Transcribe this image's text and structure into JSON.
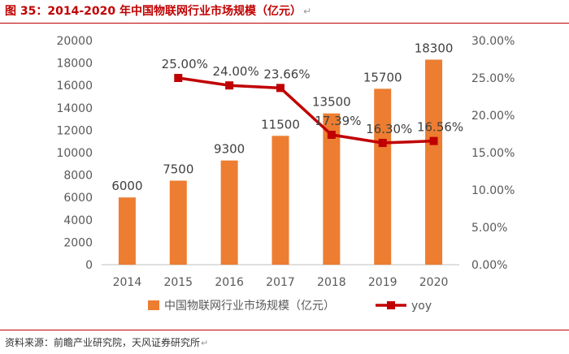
{
  "title": "图 35：2014-2020 年中国物联网行业市场规模（亿元）",
  "title_mark": "↵",
  "source": "资料来源：前瞻产业研究院，天风证券研究所",
  "source_mark": "↵",
  "colors": {
    "bar": "#ed7d31",
    "line": "#c00000",
    "axis": "#bfbfbf",
    "text": "#595959",
    "heading": "#c00000"
  },
  "chart_data": {
    "type": "bar",
    "categories": [
      "2014",
      "2015",
      "2016",
      "2017",
      "2018",
      "2019",
      "2020"
    ],
    "series": [
      {
        "name": "中国物联网行业市场规模（亿元）",
        "type": "bar",
        "axis": "left",
        "values": [
          6000,
          7500,
          9300,
          11500,
          13500,
          15700,
          18300
        ],
        "labels": [
          "6000",
          "7500",
          "9300",
          "11500",
          "13500",
          "15700",
          "18300"
        ]
      },
      {
        "name": "yoy",
        "type": "line",
        "axis": "right",
        "values": [
          null,
          25.0,
          24.0,
          23.66,
          17.39,
          16.3,
          16.56
        ],
        "labels": [
          "",
          "25.00%",
          "24.00%",
          "23.66%",
          "17.39%",
          "16.30%",
          "16.56%"
        ]
      }
    ],
    "y_left": {
      "min": 0,
      "max": 20000,
      "step": 2000,
      "ticks": [
        "0",
        "2000",
        "4000",
        "6000",
        "8000",
        "10000",
        "12000",
        "14000",
        "16000",
        "18000",
        "20000"
      ]
    },
    "y_right": {
      "min": 0,
      "max": 30,
      "step": 5,
      "ticks": [
        "0.00%",
        "5.00%",
        "10.00%",
        "15.00%",
        "20.00%",
        "25.00%",
        "30.00%"
      ]
    },
    "grid": false,
    "legend_position": "bottom"
  }
}
